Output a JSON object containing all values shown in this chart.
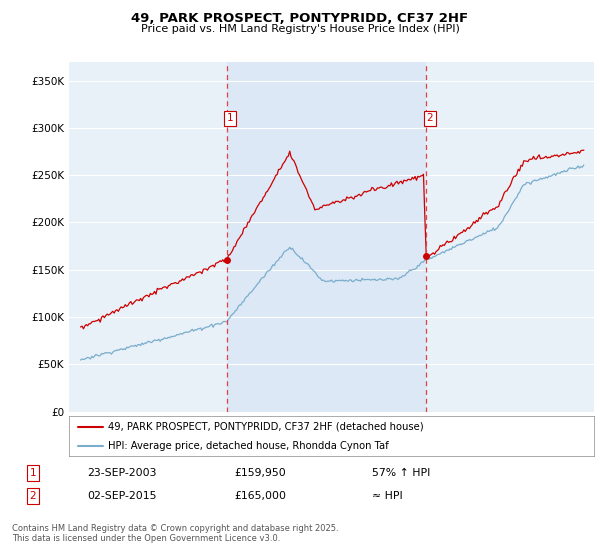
{
  "title": "49, PARK PROSPECT, PONTYPRIDD, CF37 2HF",
  "subtitle": "Price paid vs. HM Land Registry's House Price Index (HPI)",
  "legend_line1": "49, PARK PROSPECT, PONTYPRIDD, CF37 2HF (detached house)",
  "legend_line2": "HPI: Average price, detached house, Rhondda Cynon Taf",
  "transaction1_date": "23-SEP-2003",
  "transaction1_price": "£159,950",
  "transaction1_hpi": "57% ↑ HPI",
  "transaction2_date": "02-SEP-2015",
  "transaction2_price": "£165,000",
  "transaction2_hpi": "≈ HPI",
  "footer": "Contains HM Land Registry data © Crown copyright and database right 2025.\nThis data is licensed under the Open Government Licence v3.0.",
  "ylim": [
    0,
    370000
  ],
  "yticks": [
    0,
    50000,
    100000,
    150000,
    200000,
    250000,
    300000,
    350000
  ],
  "ytick_labels": [
    "£0",
    "£50K",
    "£100K",
    "£150K",
    "£200K",
    "£250K",
    "£300K",
    "£350K"
  ],
  "bg_color": "#ddeeff",
  "shade_color": "#ddeeff",
  "outer_bg_color": "#e8f0f8",
  "red_color": "#cc0000",
  "blue_color": "#7aadcc",
  "vline_color": "#dd4444",
  "transaction1_x": 2003.73,
  "transaction2_x": 2015.67,
  "grid_color": "#cccccc",
  "plot_outer_bg": "#e8eef5"
}
